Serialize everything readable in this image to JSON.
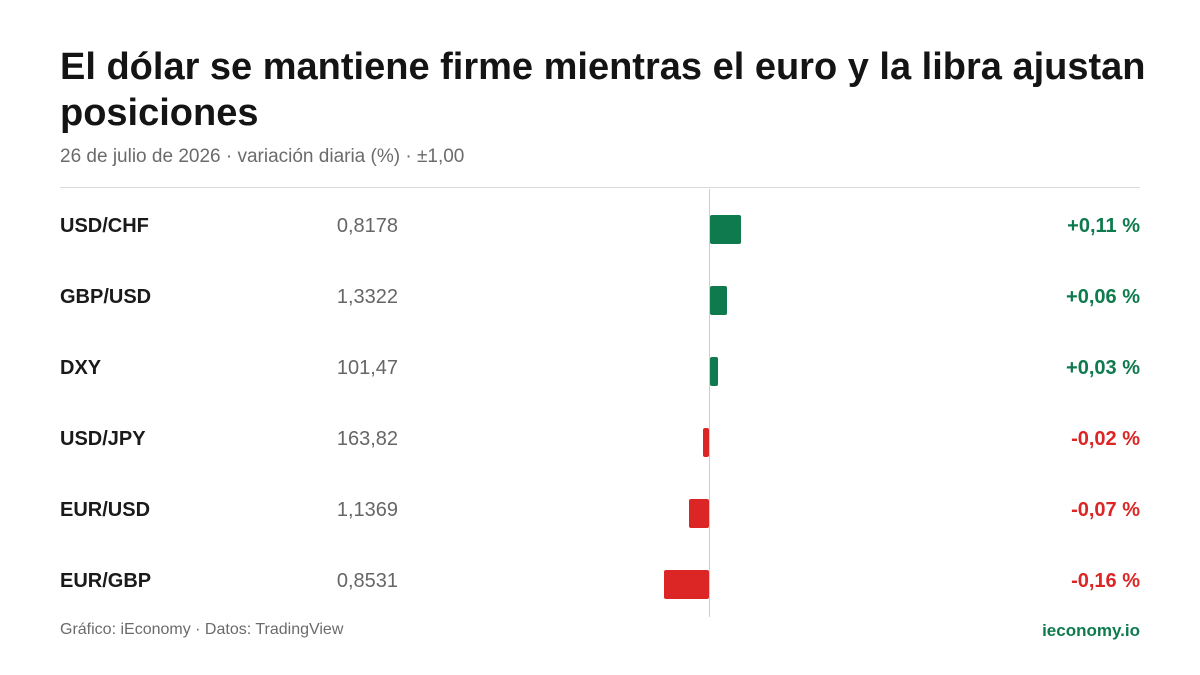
{
  "header": {
    "title": "El dólar se mantiene firme mientras el euro y la libra ajustan posiciones",
    "subtitle": "26 de julio de 2026 · variación diaria (%) · ±1,00"
  },
  "colors": {
    "positive": "#0f7a4e",
    "negative": "#dc2626"
  },
  "chart_data": {
    "type": "bar",
    "orientation": "horizontal",
    "categories": [
      "USD/CHF",
      "GBP/USD",
      "DXY",
      "USD/JPY",
      "EUR/USD",
      "EUR/GBP"
    ],
    "values": [
      0.11,
      0.06,
      0.03,
      -0.02,
      -0.07,
      -0.16
    ],
    "rates": [
      "0,8178",
      "1,3322",
      "101,47",
      "163,82",
      "1,1369",
      "0,8531"
    ],
    "labels": [
      "+0,11 %",
      "+0,06 %",
      "+0,03 %",
      "-0,02 %",
      "-0,07 %",
      "-0,16 %"
    ],
    "xlim": [
      -1,
      1
    ]
  },
  "footer": {
    "source": "Gráfico: iEconomy · Datos: TradingView",
    "brand": "ieconomy.io"
  }
}
